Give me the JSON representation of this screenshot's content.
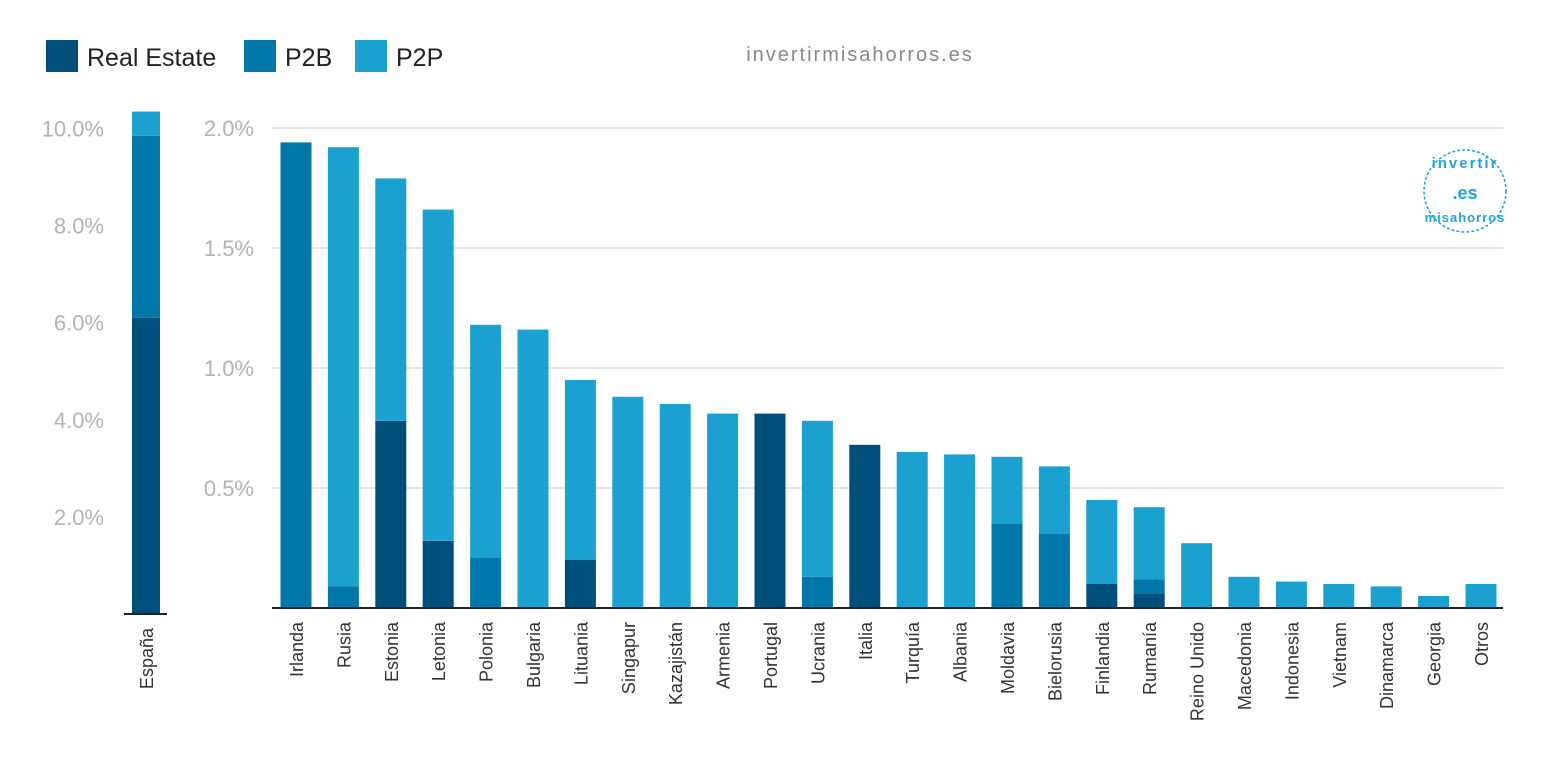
{
  "colors": {
    "real_estate": "#004f7b",
    "p2b": "#0077a8",
    "p2p": "#1aa1d0"
  },
  "watermark": "invertirmisahorros.es",
  "logo": {
    "top": "invertir",
    "middle": ".es",
    "bottom": "misahorros"
  },
  "chart_data": [
    {
      "type": "bar",
      "stacked": true,
      "categories": [
        "España"
      ],
      "series": [
        {
          "name": "Real Estate",
          "values": [
            6.1
          ]
        },
        {
          "name": "P2B",
          "values": [
            3.75
          ]
        },
        {
          "name": "P2P",
          "values": [
            0.5
          ]
        }
      ],
      "ylim": [
        0,
        10.3
      ],
      "yticks": [
        2,
        4,
        6,
        8,
        10
      ],
      "ytick_labels": [
        "2.0%",
        "4.0%",
        "6.0%",
        "8.0%",
        "10.0%"
      ],
      "grid": false
    },
    {
      "type": "bar",
      "stacked": true,
      "categories": [
        "Irlanda",
        "Rusia",
        "Estonia",
        "Letonia",
        "Polonia",
        "Bulgaria",
        "Lituania",
        "Singapur",
        "Kazajistán",
        "Armenia",
        "Portugal",
        "Ucrania",
        "Italia",
        "Turquía",
        "Albania",
        "Moldavia",
        "Bielorusia",
        "Finlandia",
        "Rumanía",
        "Reino Unido",
        "Macedonia",
        "Indonesia",
        "Vietnam",
        "Dinamarca",
        "Georgia",
        "Otros"
      ],
      "series": [
        {
          "name": "Real Estate",
          "values": [
            0,
            0,
            0.78,
            0.28,
            0,
            0,
            0.2,
            0,
            0,
            0,
            0.81,
            0,
            0.68,
            0,
            0,
            0,
            0,
            0.1,
            0.06,
            0,
            0,
            0,
            0,
            0,
            0,
            0
          ]
        },
        {
          "name": "P2B",
          "values": [
            1.94,
            0.09,
            0,
            0,
            0.21,
            0,
            0,
            0,
            0,
            0,
            0,
            0.13,
            0,
            0,
            0,
            0.35,
            0.31,
            0,
            0.06,
            0,
            0,
            0,
            0,
            0,
            0,
            0
          ]
        },
        {
          "name": "P2P",
          "values": [
            0,
            1.83,
            1.01,
            1.38,
            0.97,
            1.16,
            0.75,
            0.88,
            0.85,
            0.81,
            0,
            0.65,
            0,
            0.65,
            0.64,
            0.28,
            0.28,
            0.35,
            0.3,
            0.27,
            0.13,
            0.11,
            0.1,
            0.09,
            0.05,
            0.1
          ]
        }
      ],
      "ylim": [
        0,
        2.0
      ],
      "yticks": [
        0.5,
        1.0,
        1.5,
        2.0
      ],
      "ytick_labels": [
        "0.5%",
        "1.0%",
        "1.5%",
        "2.0%"
      ],
      "grid": true
    }
  ],
  "legend": [
    "Real Estate",
    "P2B",
    "P2P"
  ]
}
